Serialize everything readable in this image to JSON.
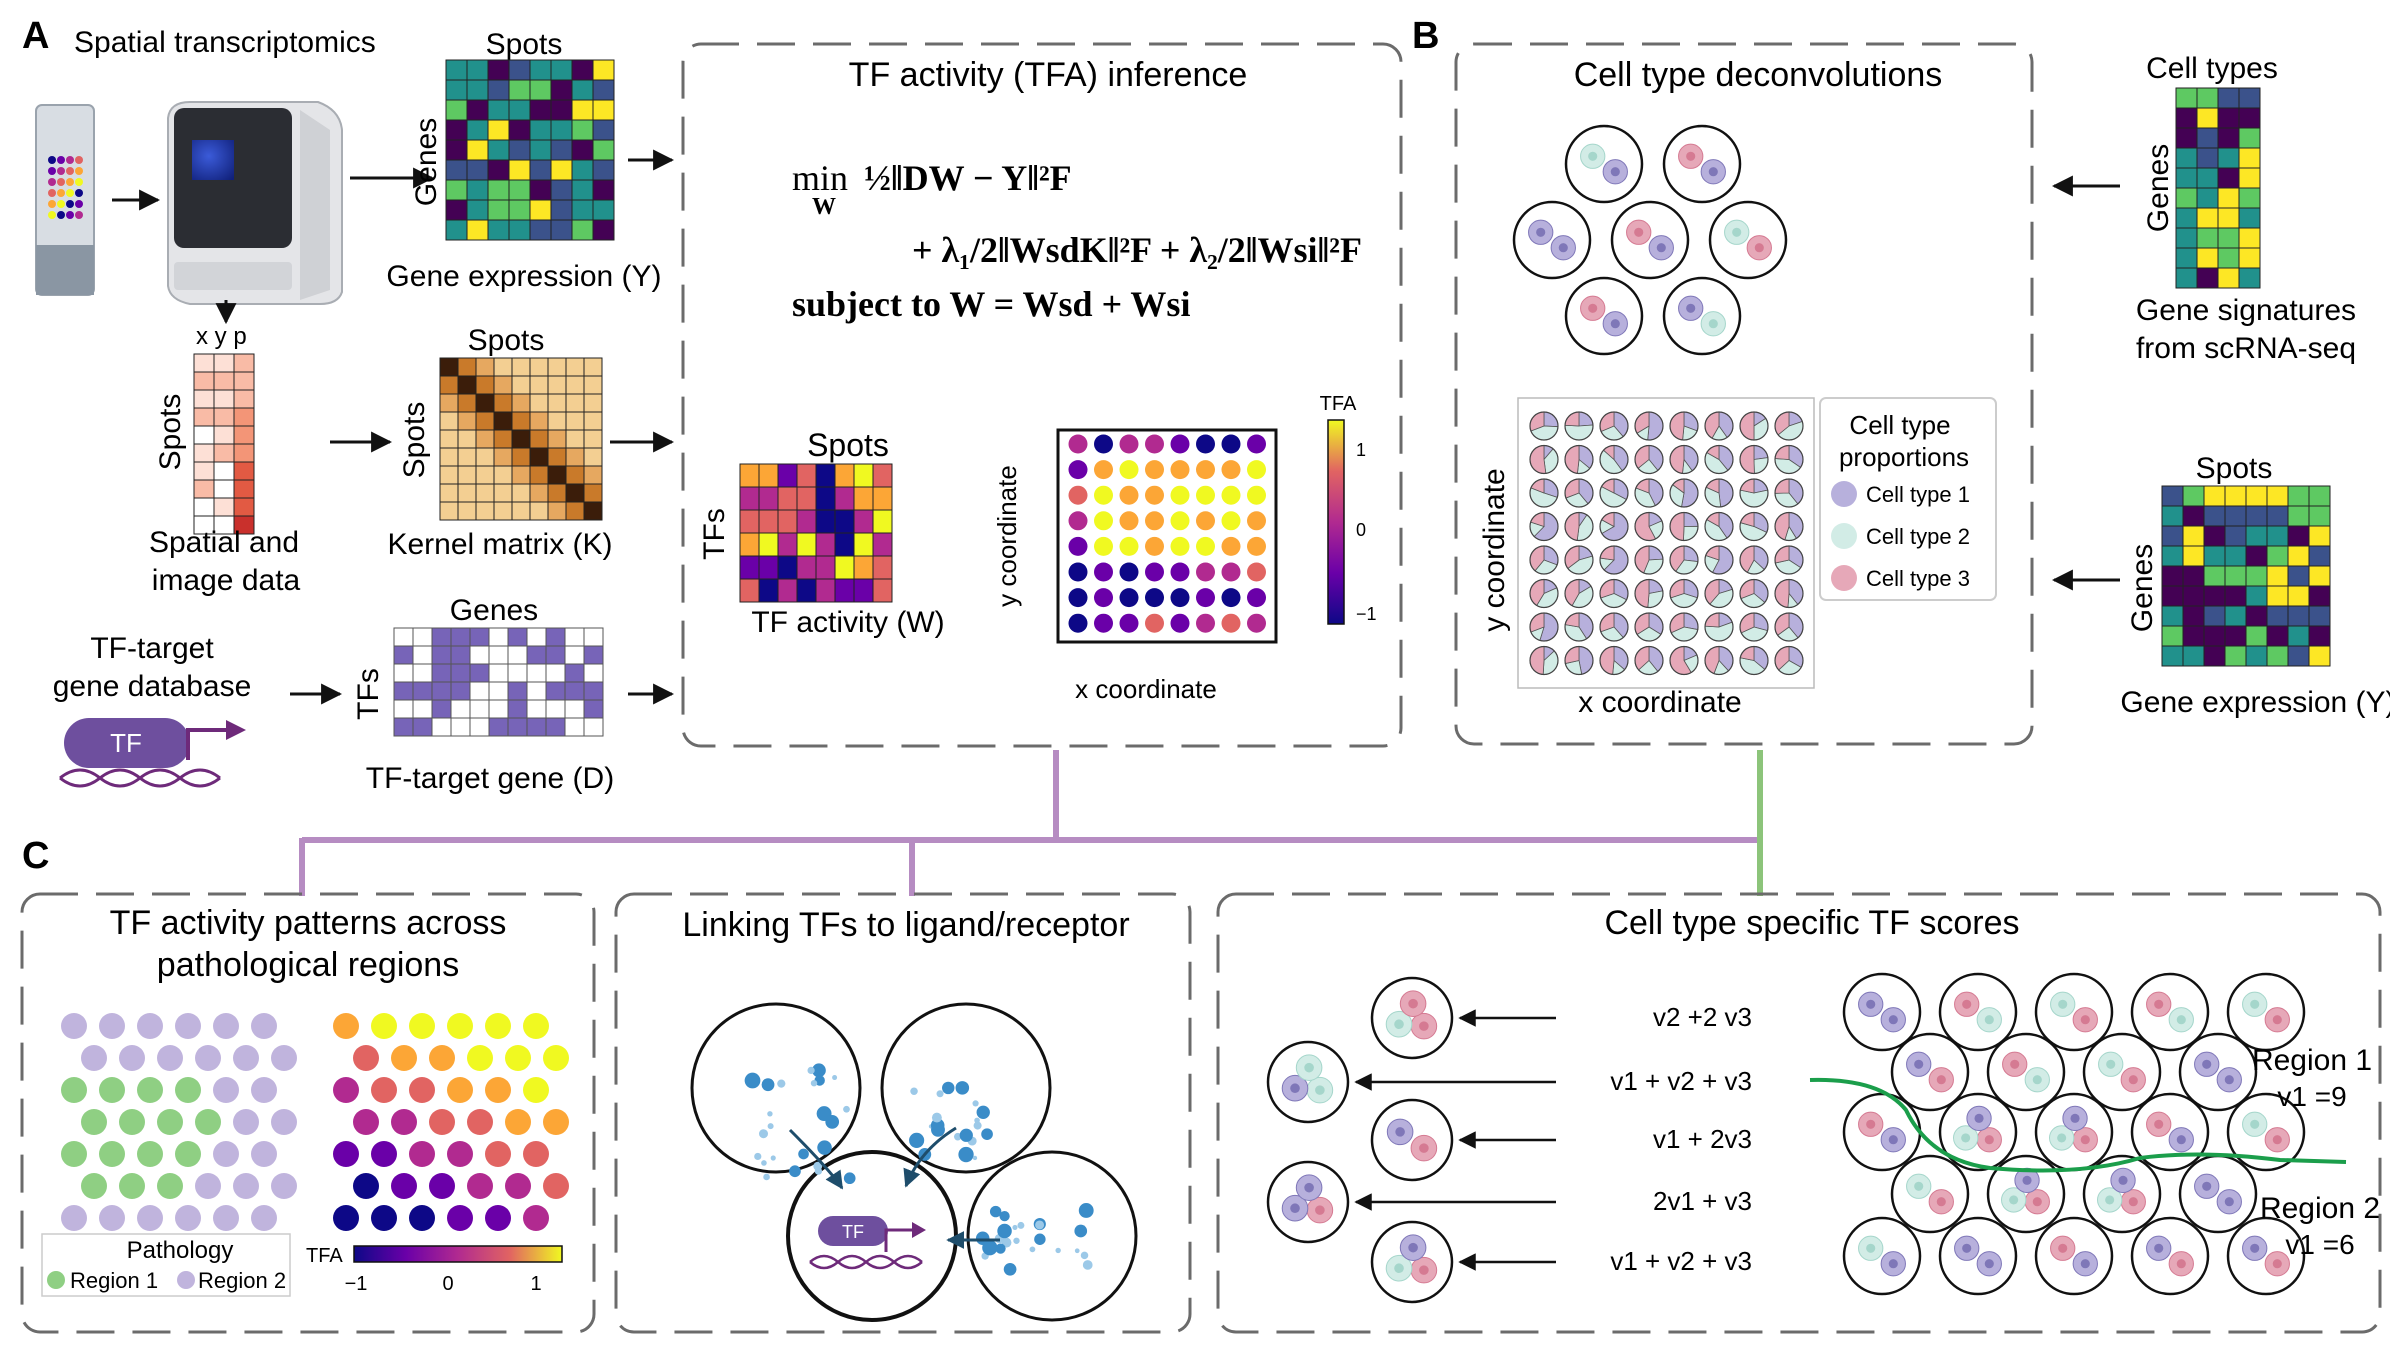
{
  "panel_a": {
    "letter": "A",
    "spatial_title": "Spatial transcriptomics",
    "spots_top": "Spots",
    "genes_label": "Genes",
    "gene_expr_label": "Gene expression (Y)",
    "xyp_label": "x y p",
    "spots_side": "Spots",
    "spatial_image_l1": "Spatial and",
    "spatial_image_l2": "image data",
    "kernel_spots_top": "Spots",
    "kernel_spots_side": "Spots",
    "kernel_label": "Kernel matrix (K)",
    "tf_db_l1": "TF-target",
    "tf_db_l2": "gene database",
    "tf_badge": "TF",
    "genes_top2": "Genes",
    "tfs_side": "TFs",
    "tf_target_label": "TF-target gene (D)"
  },
  "tfa_box": {
    "title": "TF activity (TFA) inference",
    "eq_min": "min",
    "eq_min_sub": "W",
    "eq1": "½‖DW − Y‖²F",
    "eq2": "+ λ₁/2‖WsdK‖²F  + λ₂/2‖Wsi‖²F",
    "eq3": "subject to W = Wsd + Wsi",
    "spots_label": "Spots",
    "tfs_label": "TFs",
    "tf_activity_label": "TF activity (W)",
    "y_coord": "y coordinate",
    "x_coord": "x coordinate",
    "cbar_title": "TFA",
    "cbar_ticks": [
      "1",
      "0",
      "−1"
    ]
  },
  "panel_b": {
    "letter": "B",
    "title": "Cell type deconvolutions",
    "cell_types_top": "Cell types",
    "genes_label": "Genes",
    "gene_sig_l1": "Gene signatures",
    "gene_sig_l2": "from scRNA-seq",
    "spots_top": "Spots",
    "genes_label2": "Genes",
    "gene_expr_label": "Gene expression (Y)",
    "y_coord": "y coordinate",
    "x_coord": "x coordinate",
    "legend_title_l1": "Cell type",
    "legend_title_l2": "proportions",
    "legend_items": [
      "Cell type 1",
      "Cell type 2",
      "Cell type 3"
    ]
  },
  "panel_c": {
    "letter": "C",
    "box1_title_l1": "TF activity patterns across",
    "box1_title_l2": "pathological regions",
    "pathology_title": "Pathology",
    "region1": "Region 1",
    "region2": "Region 2",
    "tfa_label": "TFA",
    "cbar_ticks": [
      "−1",
      "0",
      "1"
    ],
    "box2_title": "Linking TFs to ligand/receptor",
    "box2_tf": "TF",
    "box3_title": "Cell type specific TF scores",
    "formulas": [
      "v2 +2 v3",
      "v1 +   v2 +   v3",
      "v1 + 2v3",
      "2v1 +   v3",
      "v1 +   v2 +   v3"
    ],
    "region1_label": "Region 1",
    "region1_v": "v1 =9",
    "region2_label": "Region 2",
    "region2_v": "v1 =6"
  },
  "colors": {
    "purple_connector": "#b68cc2",
    "green_connector": "#8cc47a",
    "cell1": "#b7b0dc",
    "cell2": "#d2ece6",
    "cell3": "#e6a8b8",
    "tf_purple": "#6e4f9e",
    "region1_green": "#8fcf83",
    "region2_purple": "#c0b4dd"
  }
}
